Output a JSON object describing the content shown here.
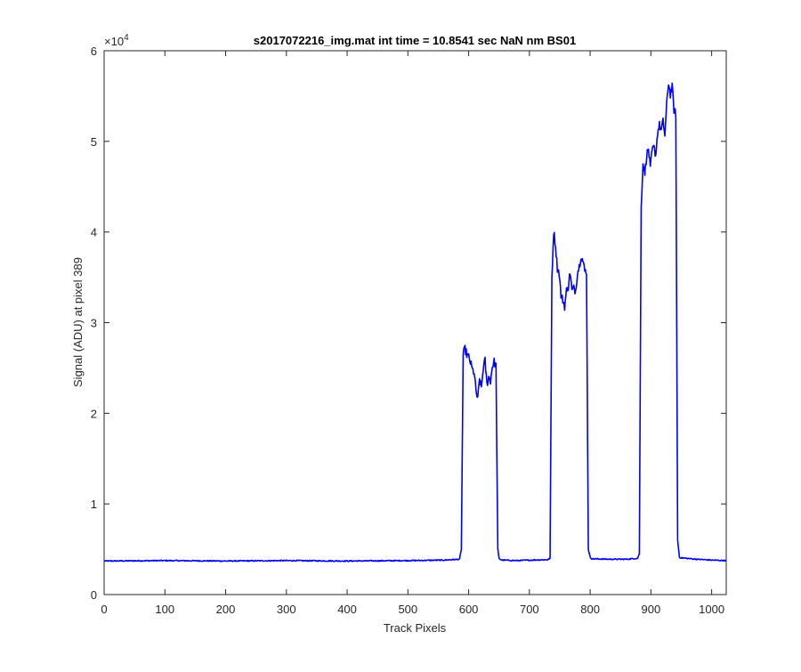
{
  "chart_data": {
    "type": "line",
    "title": "s2017072216_img.mat int time = 10.8541 sec  NaN nm BS01",
    "xlabel": "Track Pixels",
    "ylabel": "Signal (ADU) at pixel 389",
    "xlim": [
      0,
      1024
    ],
    "ylim": [
      0,
      60000
    ],
    "y_exponent_label": "×10",
    "y_exponent_power": "4",
    "x_ticks": [
      0,
      100,
      200,
      300,
      400,
      500,
      600,
      700,
      800,
      900,
      1000
    ],
    "x_tick_labels": [
      "0",
      "100",
      "200",
      "300",
      "400",
      "500",
      "600",
      "700",
      "800",
      "900",
      "1000"
    ],
    "y_ticks": [
      0,
      10000,
      20000,
      30000,
      40000,
      50000,
      60000
    ],
    "y_tick_labels": [
      "0",
      "1",
      "2",
      "3",
      "4",
      "5",
      "6"
    ],
    "grid": false,
    "line_color": "#0000ff",
    "series": [
      {
        "x": [
          0,
          100,
          200,
          300,
          400,
          500,
          560,
          585,
          588,
          591,
          594,
          597,
          600,
          603,
          606,
          609,
          612,
          615,
          618,
          621,
          624,
          627,
          630,
          633,
          636,
          639,
          642,
          645,
          648,
          650,
          653,
          656,
          680,
          700,
          730,
          734,
          737,
          740,
          743,
          746,
          749,
          752,
          755,
          758,
          761,
          764,
          767,
          770,
          773,
          776,
          779,
          782,
          785,
          788,
          791,
          794,
          797,
          800,
          803,
          830,
          860,
          878,
          881,
          884,
          887,
          890,
          893,
          896,
          899,
          902,
          905,
          908,
          911,
          914,
          917,
          920,
          923,
          926,
          929,
          932,
          935,
          938,
          941,
          944,
          947,
          950,
          975,
          1000,
          1024
        ],
        "y": [
          3700,
          3750,
          3700,
          3750,
          3700,
          3750,
          3800,
          3900,
          5000,
          26500,
          27100,
          26500,
          26200,
          25600,
          24800,
          24500,
          22500,
          21500,
          23800,
          22800,
          25000,
          25800,
          23200,
          24000,
          23600,
          25200,
          25700,
          25200,
          5000,
          4000,
          3850,
          3800,
          3750,
          3800,
          3850,
          4000,
          35000,
          40100,
          38500,
          36000,
          35500,
          33000,
          32500,
          31800,
          33500,
          34000,
          35600,
          33500,
          33800,
          33500,
          35500,
          36200,
          37400,
          36800,
          35700,
          35700,
          5000,
          4100,
          3950,
          3900,
          3900,
          4000,
          4500,
          43000,
          47500,
          46500,
          48500,
          49200,
          47000,
          49000,
          49300,
          48500,
          51000,
          51800,
          51200,
          52200,
          50700,
          54000,
          56500,
          55200,
          56000,
          53500,
          53000,
          6000,
          4100,
          4050,
          3900,
          3800,
          3750
        ]
      }
    ]
  }
}
